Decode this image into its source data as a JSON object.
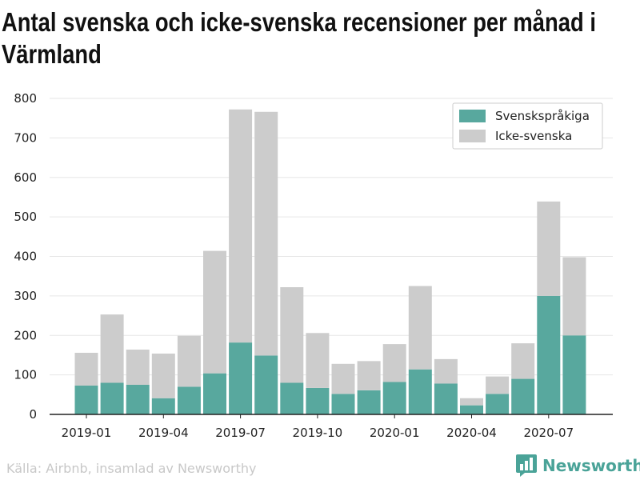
{
  "title": "Antal svenska och icke-svenska recensioner per månad i Värmland",
  "source": "Källa: Airbnb, insamlad av Newsworthy",
  "brand": "Newsworthy",
  "colors": {
    "swedish": "#58a89e",
    "other": "#cccccc",
    "brand": "#4aa398"
  },
  "chart_data": {
    "type": "bar",
    "stacked": true,
    "title": "Antal svenska och icke-svenska recensioner per månad i Värmland",
    "xlabel": "",
    "ylabel": "",
    "ylim": [
      0,
      800
    ],
    "yticks": [
      "0",
      "100",
      "200",
      "300",
      "400",
      "500",
      "600",
      "700",
      "800"
    ],
    "grid": "horizontal",
    "legend_position": "top-right",
    "categories": [
      "2019-01",
      "2019-02",
      "2019-03",
      "2019-04",
      "2019-05",
      "2019-06",
      "2019-07",
      "2019-08",
      "2019-09",
      "2019-10",
      "2019-11",
      "2019-12",
      "2020-01",
      "2020-02",
      "2020-03",
      "2020-04",
      "2020-05",
      "2020-06",
      "2020-07",
      "2020-08"
    ],
    "xtick_labels": [
      "2019-01",
      "2019-04",
      "2019-07",
      "2019-10",
      "2020-01",
      "2020-04",
      "2020-07"
    ],
    "series": [
      {
        "name": "Svenskspråkiga",
        "values": [
          73,
          80,
          75,
          41,
          70,
          104,
          182,
          149,
          80,
          67,
          52,
          61,
          82,
          114,
          78,
          23,
          52,
          90,
          300,
          200
        ]
      },
      {
        "name": "Icke-svenska",
        "values": [
          83,
          173,
          89,
          113,
          129,
          310,
          590,
          617,
          242,
          139,
          76,
          74,
          96,
          211,
          62,
          18,
          44,
          90,
          239,
          198
        ]
      }
    ]
  }
}
